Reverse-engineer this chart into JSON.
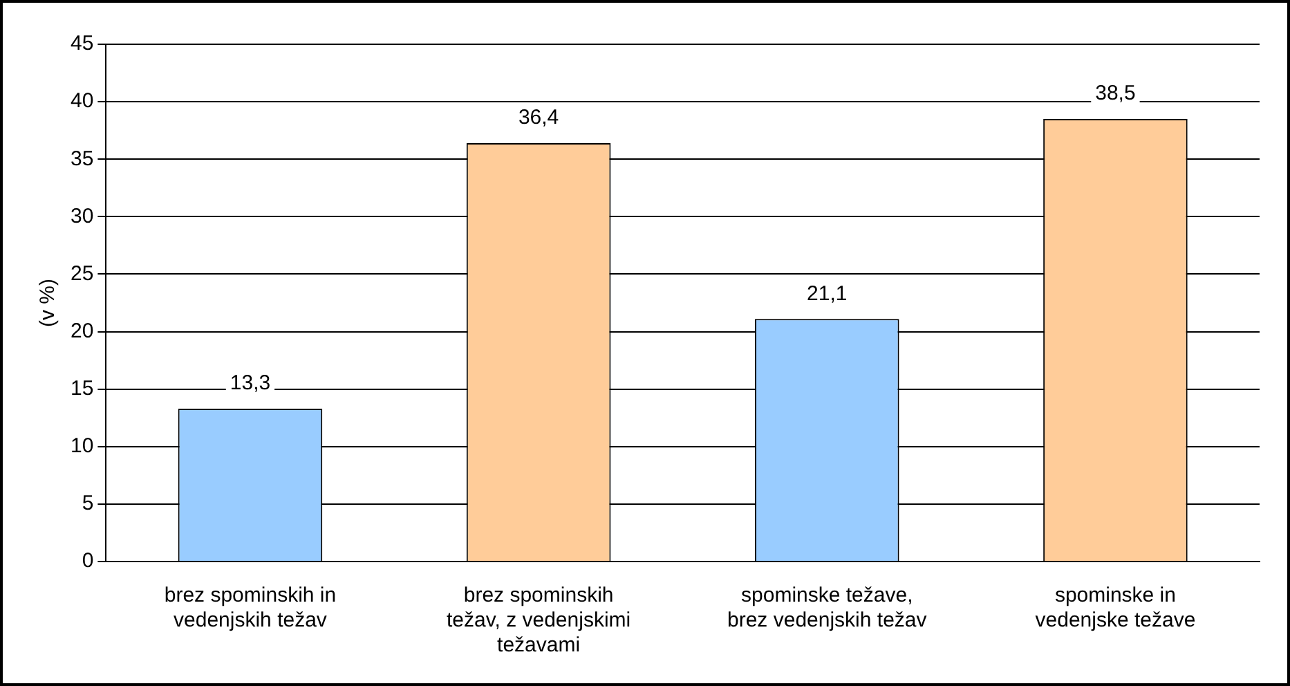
{
  "chart_data": {
    "type": "bar",
    "ylabel": "(v %)",
    "categories": [
      "brez spominskih in vedenjskih težav",
      "brez spominskih težav, z vedenjskimi težavami",
      "spominske težave, brez vedenjskih težav",
      "spominske in vedenjske težave"
    ],
    "values": [
      13.3,
      36.4,
      21.1,
      38.5
    ],
    "value_labels": [
      "13,3",
      "36,4",
      "21,1",
      "38,5"
    ],
    "colors": [
      "#99ccff",
      "#ffcc99",
      "#99ccff",
      "#ffcc99"
    ],
    "ylim": [
      0,
      45
    ],
    "yticks": [
      0,
      5,
      10,
      15,
      20,
      25,
      30,
      35,
      40,
      45
    ],
    "grid": "y",
    "legend": false
  }
}
